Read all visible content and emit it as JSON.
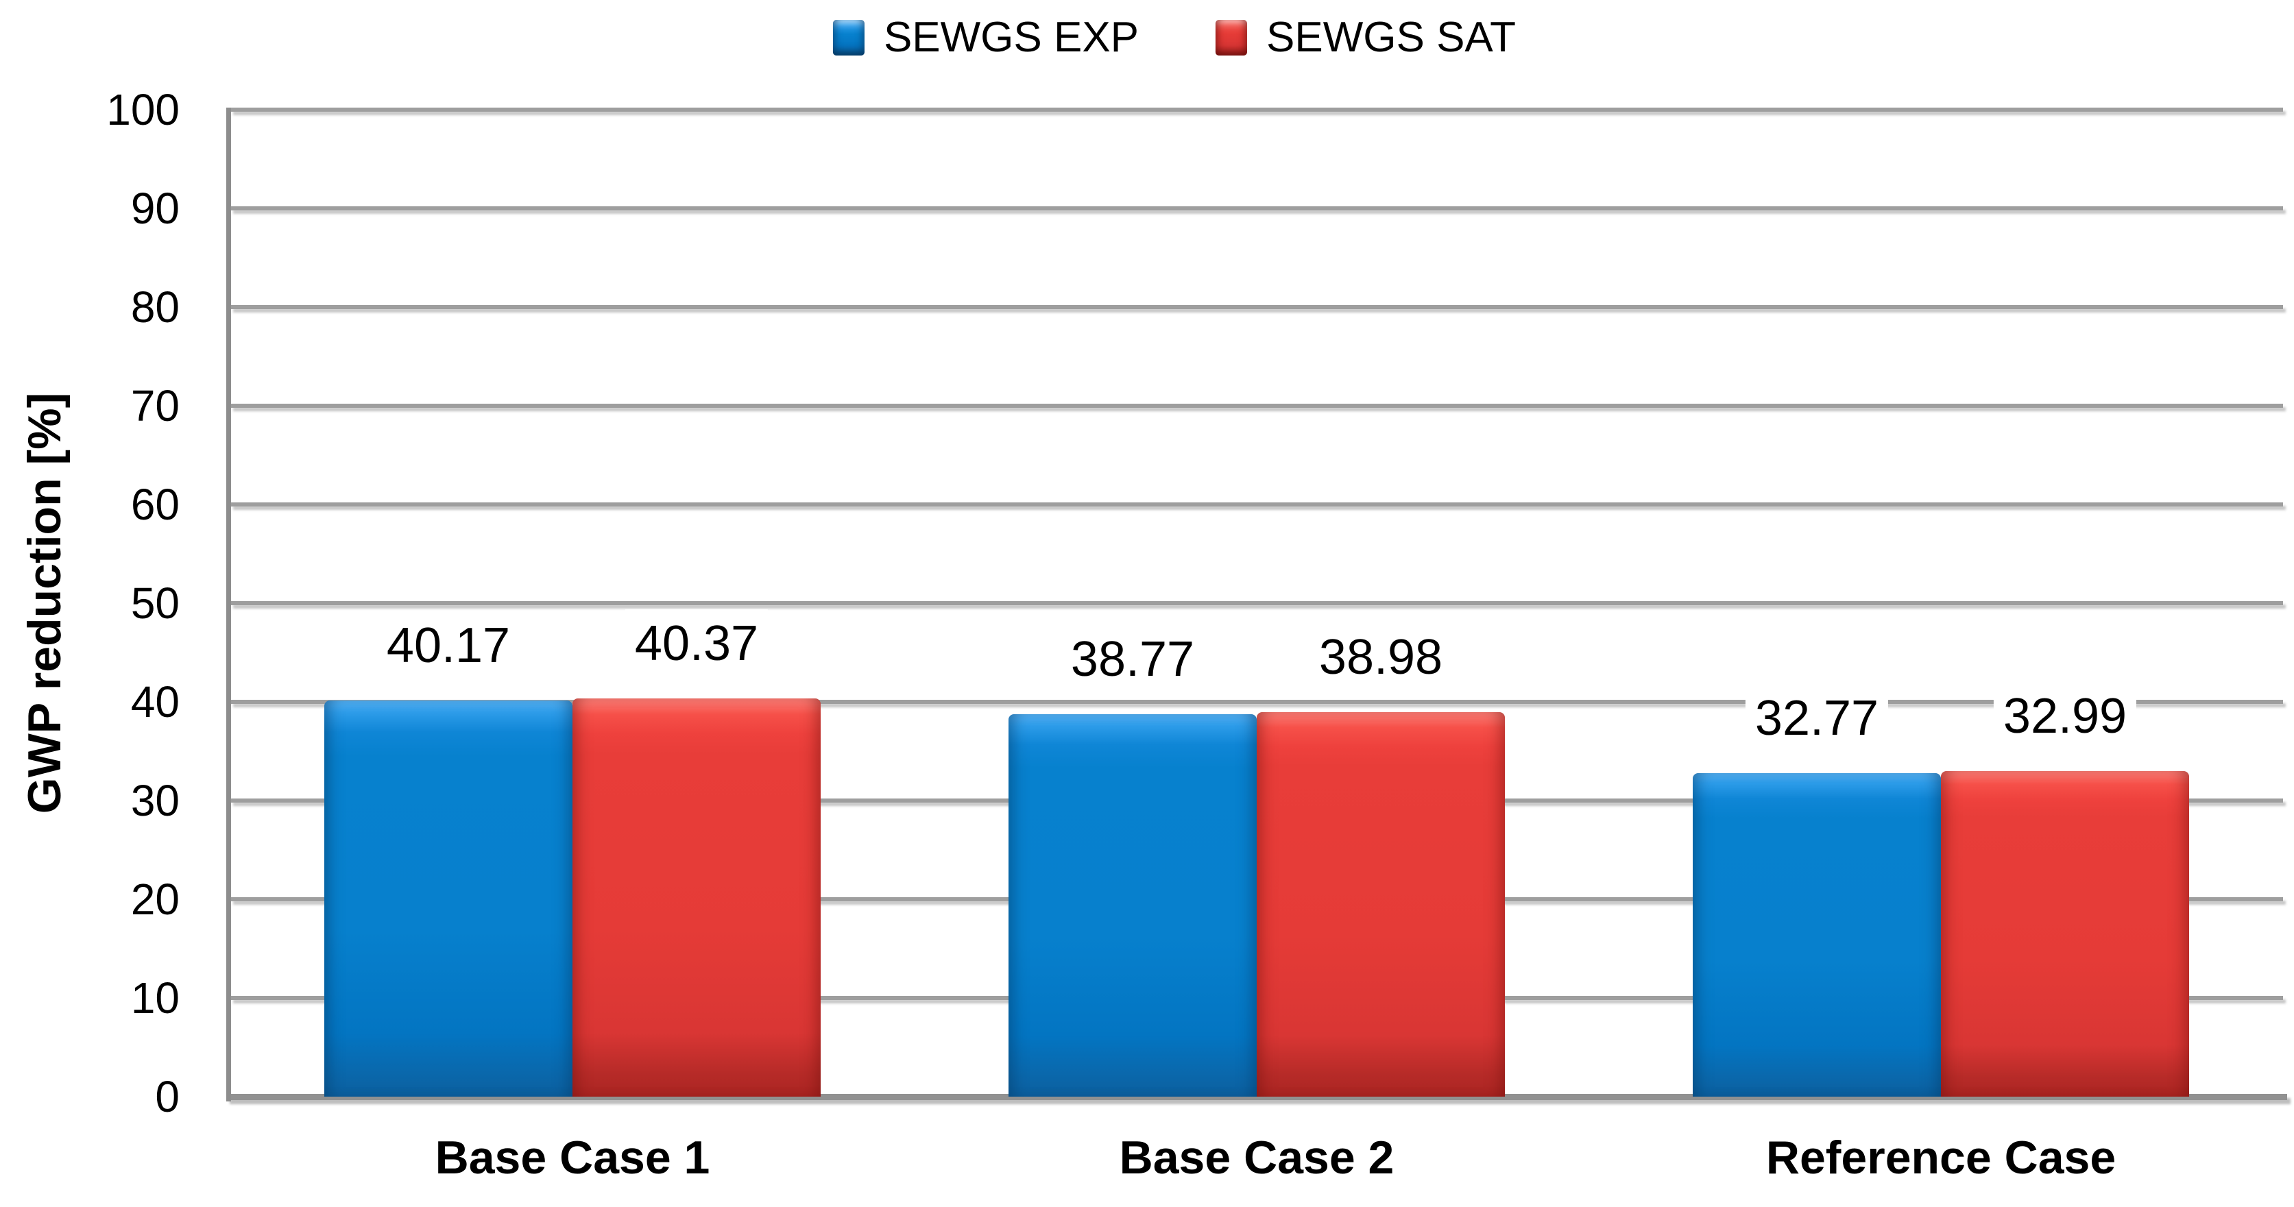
{
  "chart_data": {
    "type": "bar",
    "title": "",
    "categories": [
      "Base Case 1",
      "Base Case 2",
      "Reference Case"
    ],
    "series": [
      {
        "name": "SEWGS EXP",
        "color": "#0781CE",
        "values": [
          40.17,
          38.77,
          32.77
        ]
      },
      {
        "name": "SEWGS SAT",
        "color": "#E53B37",
        "values": [
          40.37,
          38.98,
          32.99
        ]
      }
    ],
    "data_labels": [
      "40.17",
      "40.37",
      "38.77",
      "38.98",
      "32.77",
      "32.99"
    ],
    "xlabel": "",
    "ylabel": "GWP reduction [%]",
    "ylim": [
      0,
      100
    ],
    "ytick_step": 10,
    "yticks": [
      0,
      10,
      20,
      30,
      40,
      50,
      60,
      70,
      80,
      90,
      100
    ],
    "grid": "horizontal",
    "gridline_color": "#9E9E9E",
    "axis_color": "#8D8D8D",
    "legend_position": "top-center",
    "plot_background": "#FFFFFF"
  }
}
